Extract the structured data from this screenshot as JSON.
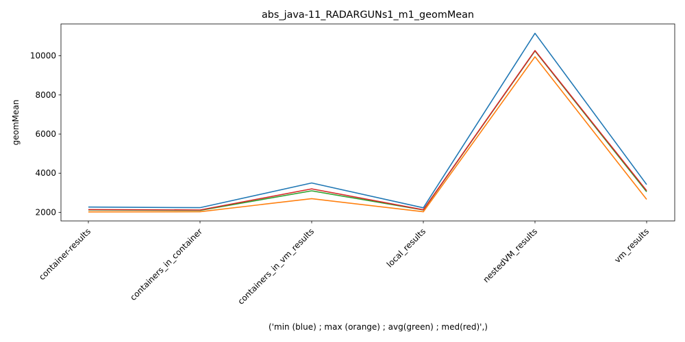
{
  "chart_data": {
    "type": "line",
    "title": "abs_java-11_RADARGUNs1_m1_geomMean",
    "xlabel": "('min (blue) ; max (orange) ; avg(green) ; med(red)',)",
    "ylabel": "geomMean",
    "categories": [
      "container-results",
      "containers_in_container",
      "containers_in_vm_results",
      "local_results",
      "nestedVM_results",
      "vm_results"
    ],
    "ylim": [
      1560,
      11630
    ],
    "yticks": [
      2000,
      4000,
      6000,
      8000,
      10000
    ],
    "grid": false,
    "series": [
      {
        "color": "#1f77b4",
        "values": [
          2270,
          2240,
          3500,
          2230,
          11150,
          3420
        ]
      },
      {
        "color": "#2ca02c",
        "values": [
          2120,
          2100,
          3100,
          2120,
          10250,
          3050
        ]
      },
      {
        "color": "#d62728",
        "values": [
          2140,
          2120,
          3200,
          2130,
          10270,
          3110
        ]
      },
      {
        "color": "#ff7f0e",
        "values": [
          2020,
          2030,
          2700,
          2030,
          9950,
          2660
        ]
      }
    ]
  }
}
